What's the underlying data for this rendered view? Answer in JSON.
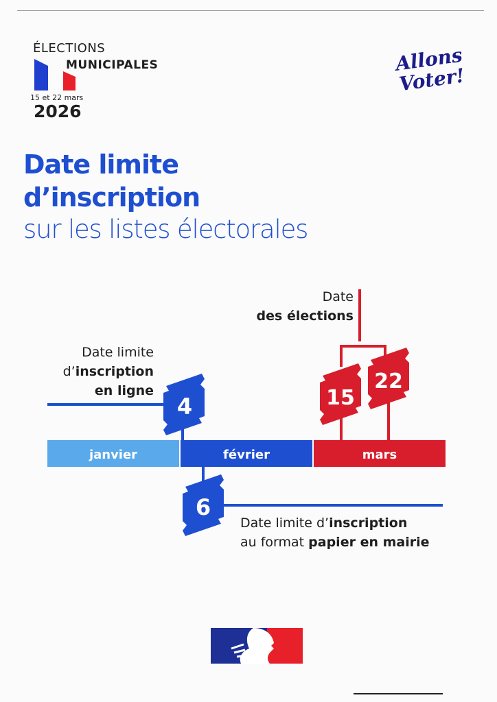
{
  "header": {
    "elections": "ÉLECTIONS",
    "municipales": "MUNICIPALES",
    "dates": "15 et 22 mars",
    "year": "2026",
    "slogan_line1": "Allons",
    "slogan_line2": "Voter!"
  },
  "title": {
    "line1": "Date limite",
    "line2": "d’inscription",
    "line3": "sur les listes électorales"
  },
  "timeline": {
    "months": [
      {
        "label": "janvier",
        "color": "#5aa9ea"
      },
      {
        "label": "février",
        "color": "#1f4fd1"
      },
      {
        "label": "mars",
        "color": "#d81e2c"
      }
    ],
    "online": {
      "day": "4",
      "l1": "Date limite",
      "l2a": "d’",
      "l2b": "inscription",
      "l3": "en ligne"
    },
    "paper": {
      "day": "6",
      "l1a": "Date limite d’",
      "l1b": "inscription",
      "l2a": "au format ",
      "l2b": "papier en mairie"
    },
    "elections": {
      "days": [
        "15",
        "22"
      ],
      "l1": "Date",
      "l2": "des élections"
    }
  },
  "colors": {
    "blue": "#1f4fd1",
    "red": "#d81e2c",
    "light_blue": "#5aa9ea",
    "navy": "#1c1c8a"
  },
  "footer": {
    "logo": "Marianne-logo"
  }
}
